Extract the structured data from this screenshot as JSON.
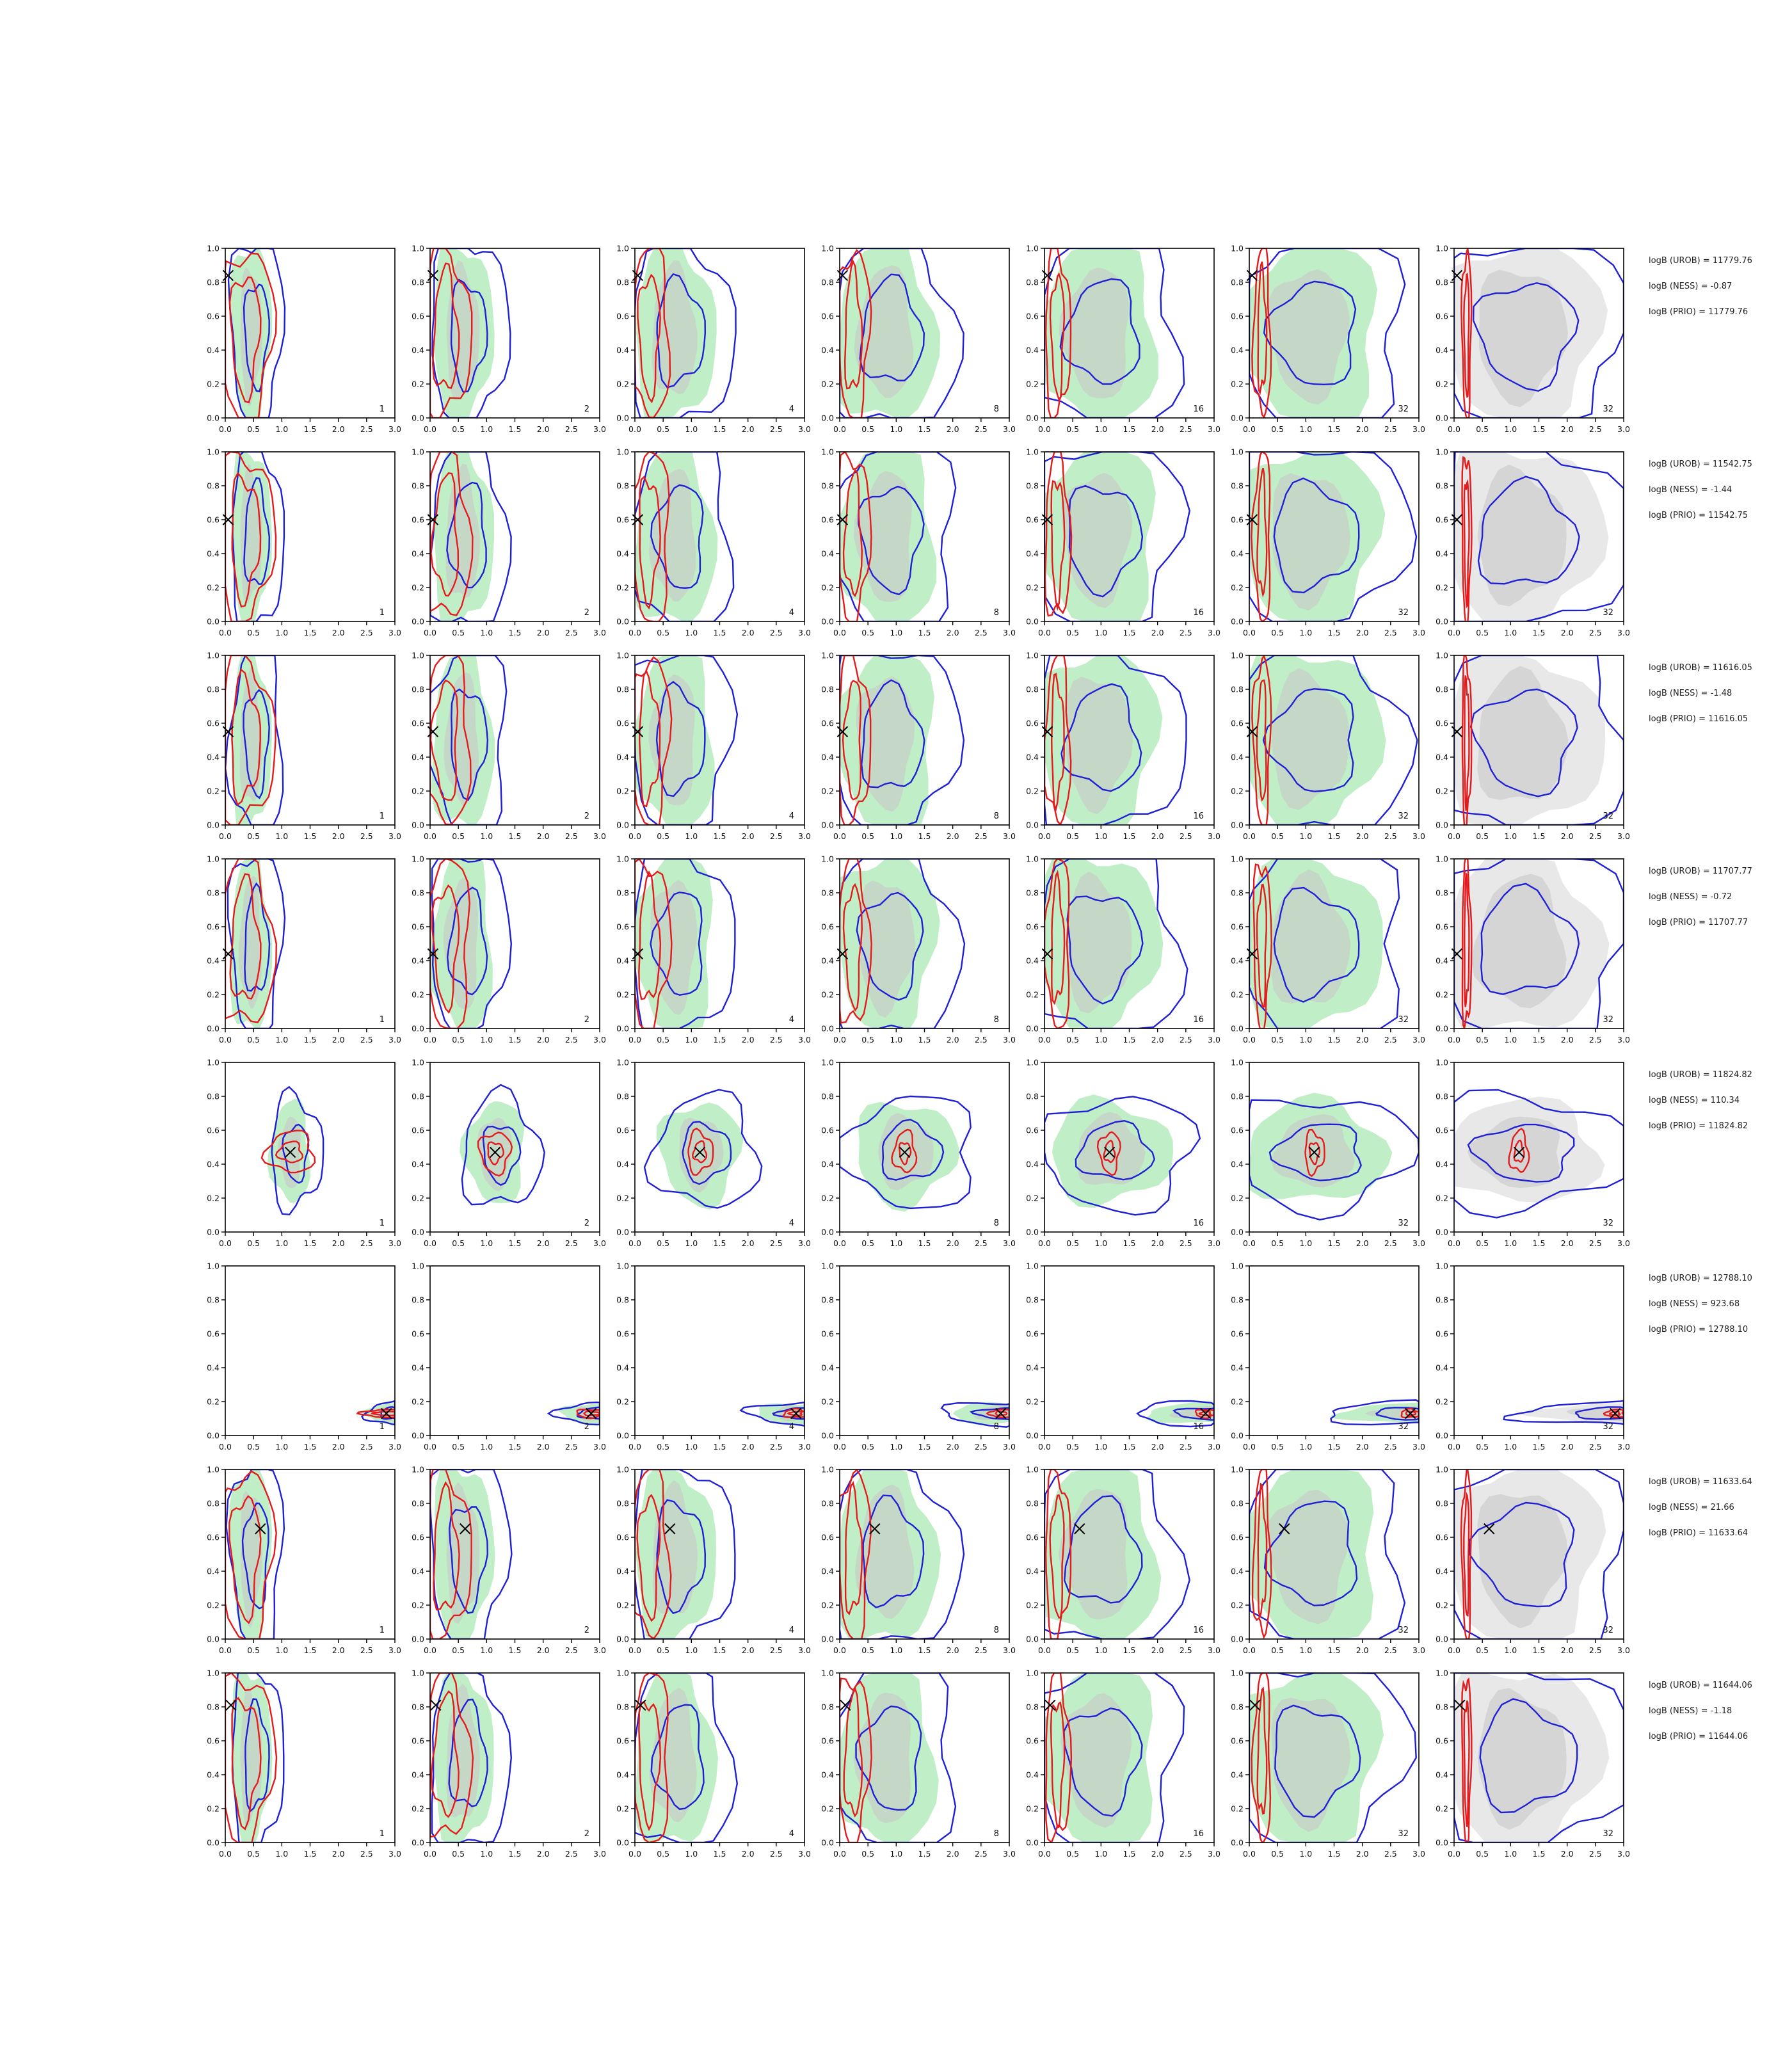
{
  "chart_data": {
    "type": "contour_grid",
    "rows": 8,
    "columns": 7,
    "xlim": [
      0.0,
      3.0
    ],
    "ylim": [
      0.0,
      1.0
    ],
    "x_ticks": [
      "0.0",
      "0.5",
      "1.0",
      "1.5",
      "2.0",
      "2.5",
      "3.0"
    ],
    "y_ticks": [
      "0.0",
      "0.2",
      "0.4",
      "0.6",
      "0.8",
      "1.0"
    ],
    "column_labels": [
      "1",
      "2",
      "4",
      "8",
      "16",
      "32",
      "32"
    ],
    "colors": {
      "red": "#e41a1c",
      "blue": "#1f1fd6",
      "green_fill": "#b9ecc0",
      "grey_fill": "#c8c8c8",
      "marker": "#000000"
    },
    "rows_data": [
      {
        "marker": [
          0.05,
          0.84
        ],
        "logB": {
          "UROB": "logB (UROB) = 11779.76",
          "NESS": "logB (NESS) = -0.87",
          "PRIO": "logB (PRIO) = 11779.76"
        }
      },
      {
        "marker": [
          0.05,
          0.6
        ],
        "logB": {
          "UROB": "logB (UROB) = 11542.75",
          "NESS": "logB (NESS) = -1.44",
          "PRIO": "logB (PRIO) = 11542.75"
        }
      },
      {
        "marker": [
          0.05,
          0.55
        ],
        "logB": {
          "UROB": "logB (UROB) = 11616.05",
          "NESS": "logB (NESS) = -1.48",
          "PRIO": "logB (PRIO) = 11616.05"
        }
      },
      {
        "marker": [
          0.05,
          0.44
        ],
        "logB": {
          "UROB": "logB (UROB) = 11707.77",
          "NESS": "logB (NESS) = -0.72",
          "PRIO": "logB (PRIO) = 11707.77"
        }
      },
      {
        "marker": [
          1.15,
          0.47
        ],
        "logB": {
          "UROB": "logB (UROB) = 11824.82",
          "NESS": "logB (NESS) = 110.34",
          "PRIO": "logB (PRIO) = 11824.82"
        }
      },
      {
        "marker": [
          2.85,
          0.13
        ],
        "logB": {
          "UROB": "logB (UROB) = 12788.10",
          "NESS": "logB (NESS) = 923.68",
          "PRIO": "logB (PRIO) = 12788.10"
        }
      },
      {
        "marker": [
          0.62,
          0.65
        ],
        "logB": {
          "UROB": "logB (UROB) = 11633.64",
          "NESS": "logB (NESS) = 21.66",
          "PRIO": "logB (PRIO) = 11633.64"
        }
      },
      {
        "marker": [
          0.1,
          0.81
        ],
        "logB": {
          "UROB": "logB (UROB) = 11644.06",
          "NESS": "logB (NESS) = -1.18",
          "PRIO": "logB (PRIO) = 11644.06"
        }
      }
    ]
  }
}
